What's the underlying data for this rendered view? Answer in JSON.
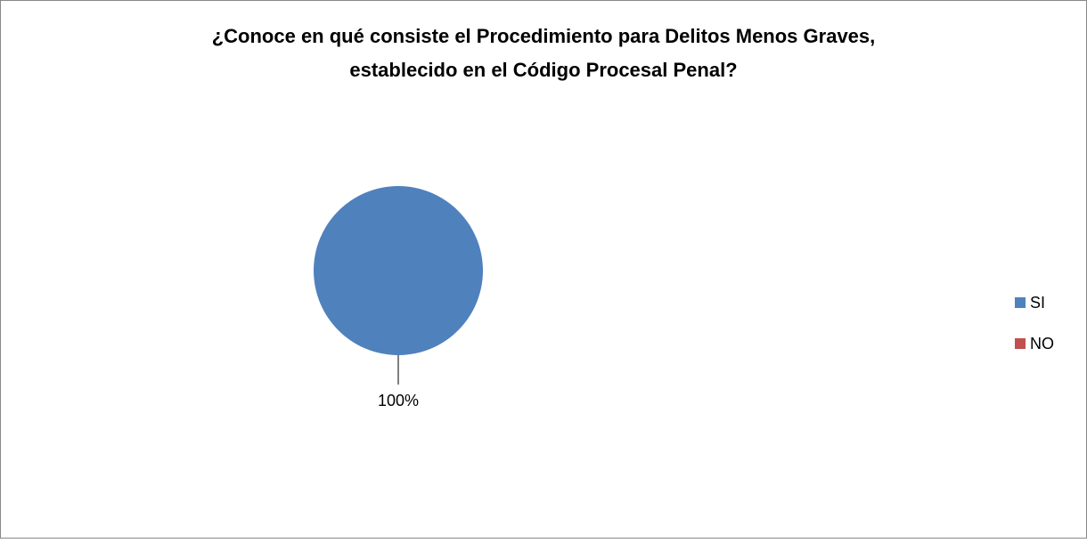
{
  "chart_data": {
    "type": "pie",
    "title": [
      "¿Conoce en qué consiste el Procedimiento para Delitos Menos Graves,",
      "establecido en el Código Procesal Penal?"
    ],
    "categories": [
      "SI",
      "NO"
    ],
    "values": [
      100,
      0
    ],
    "value_labels": [
      "100%",
      null
    ],
    "colors": [
      "#4f81bd",
      "#c0504d"
    ],
    "legend": "right"
  }
}
